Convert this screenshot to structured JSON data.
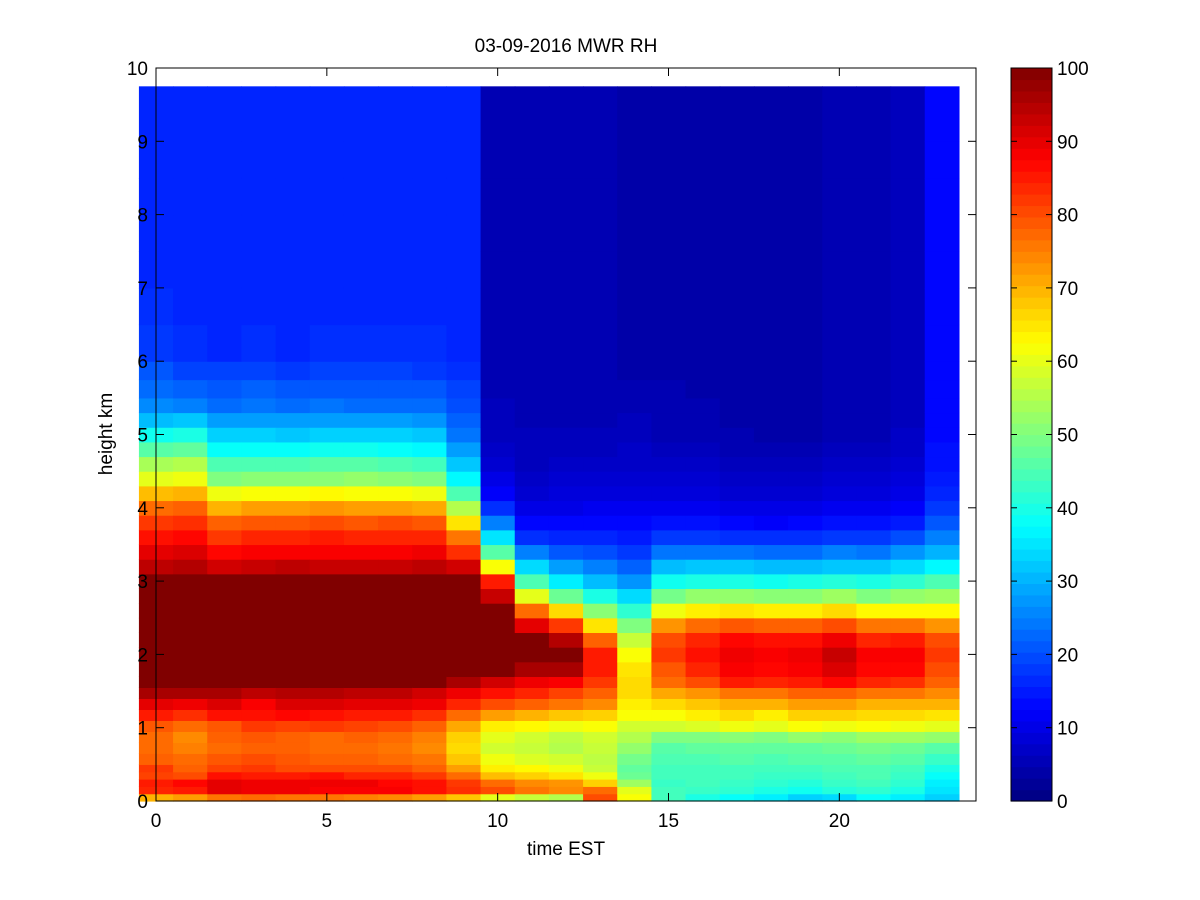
{
  "chart_data": {
    "type": "heatmap",
    "title": "03-09-2016 MWR RH",
    "xlabel": "time EST",
    "ylabel": "height km",
    "xlim": [
      0,
      24
    ],
    "ylim": [
      0,
      10
    ],
    "xticks": [
      0,
      5,
      10,
      15,
      20
    ],
    "yticks": [
      0,
      1,
      2,
      3,
      4,
      5,
      6,
      7,
      8,
      9,
      10
    ],
    "colorbar": {
      "min": 0,
      "max": 100,
      "ticks": [
        0,
        10,
        20,
        30,
        40,
        50,
        60,
        70,
        80,
        90,
        100
      ],
      "colormap": "jet"
    },
    "x": [
      0,
      1,
      2,
      3,
      4,
      5,
      6,
      7,
      8,
      9,
      10,
      11,
      12,
      13,
      14,
      15,
      16,
      17,
      18,
      19,
      20,
      21,
      22,
      23
    ],
    "y_edges": [
      0,
      0.1,
      0.2,
      0.3,
      0.4,
      0.5,
      0.65,
      0.8,
      0.95,
      1.1,
      1.25,
      1.4,
      1.55,
      1.7,
      1.9,
      2.1,
      2.3,
      2.5,
      2.7,
      2.9,
      3.1,
      3.3,
      3.5,
      3.7,
      3.9,
      4.1,
      4.3,
      4.5,
      4.7,
      4.9,
      5.1,
      5.3,
      5.5,
      5.75,
      6.0,
      6.5,
      7.0,
      7.5,
      8.0,
      8.5,
      9.0,
      9.75
    ],
    "profiles": {
      "morning": [
        [
          0,
          75
        ],
        [
          0.3,
          88
        ],
        [
          0.7,
          77
        ],
        [
          1.2,
          80
        ],
        [
          1.5,
          92
        ],
        [
          1.7,
          100
        ],
        [
          3.0,
          100
        ],
        [
          3.4,
          90
        ],
        [
          3.8,
          80
        ],
        [
          4.1,
          65
        ],
        [
          4.4,
          48
        ],
        [
          4.7,
          35
        ],
        [
          5.2,
          24
        ],
        [
          6.0,
          18
        ],
        [
          9.75,
          16
        ]
      ],
      "afternoon": [
        [
          0,
          72
        ],
        [
          0.2,
          43
        ],
        [
          0.5,
          45
        ],
        [
          1.0,
          50
        ],
        [
          1.3,
          64
        ],
        [
          1.7,
          86
        ],
        [
          2.1,
          88
        ],
        [
          2.3,
          76
        ],
        [
          2.6,
          55
        ],
        [
          3.0,
          38
        ],
        [
          3.4,
          22
        ],
        [
          3.8,
          12
        ],
        [
          4.5,
          6
        ],
        [
          6.0,
          4
        ],
        [
          9.75,
          5
        ]
      ]
    },
    "values": [
      [
        70,
        84,
        85,
        81,
        82,
        78,
        77,
        77,
        79,
        85,
        90,
        96,
        100,
        100,
        100,
        100,
        100,
        100,
        100,
        100,
        94,
        90,
        86,
        82,
        77,
        69,
        60,
        54,
        46,
        39,
        31,
        26,
        23,
        21,
        18,
        17,
        16,
        16,
        16,
        16,
        16
      ],
      [
        72,
        85,
        87,
        80,
        78,
        77,
        75,
        74,
        77,
        83,
        89,
        96,
        100,
        100,
        100,
        100,
        100,
        100,
        100,
        100,
        95,
        91,
        87,
        83,
        78,
        70,
        61,
        55,
        47,
        40,
        32,
        25,
        22,
        19,
        17,
        16,
        16,
        16,
        16,
        16,
        16
      ],
      [
        76,
        90,
        90,
        86,
        81,
        79,
        77,
        78,
        79,
        86,
        91,
        96,
        100,
        100,
        100,
        100,
        100,
        100,
        100,
        100,
        92,
        87,
        82,
        78,
        70,
        61,
        50,
        45,
        38,
        33,
        28,
        23,
        21,
        19,
        16,
        16,
        16,
        16,
        16,
        16,
        16
      ],
      [
        77,
        89,
        89,
        85,
        82,
        80,
        78,
        79,
        82,
        86,
        88,
        94,
        100,
        100,
        100,
        100,
        100,
        100,
        100,
        100,
        93,
        88,
        84,
        79,
        72,
        62,
        51,
        45,
        38,
        33,
        28,
        24,
        22,
        19,
        17,
        16,
        16,
        16,
        16,
        16,
        16
      ],
      [
        76,
        89,
        89,
        85,
        80,
        79,
        78,
        78,
        81,
        87,
        91,
        95,
        100,
        100,
        100,
        100,
        100,
        100,
        100,
        100,
        94,
        88,
        84,
        79,
        72,
        62,
        51,
        45,
        38,
        32,
        28,
        23,
        21,
        18,
        16,
        16,
        16,
        16,
        16,
        16,
        16
      ],
      [
        76,
        88,
        89,
        86,
        80,
        78,
        77,
        77,
        82,
        86,
        91,
        95,
        100,
        100,
        100,
        100,
        100,
        100,
        100,
        100,
        93,
        88,
        85,
        80,
        73,
        63,
        51,
        46,
        39,
        33,
        28,
        24,
        21,
        19,
        17,
        16,
        16,
        16,
        16,
        16,
        16
      ],
      [
        75,
        88,
        89,
        84,
        80,
        78,
        77,
        78,
        81,
        85,
        90,
        94,
        100,
        100,
        100,
        100,
        100,
        100,
        100,
        100,
        93,
        88,
        84,
        79,
        72,
        62,
        52,
        46,
        39,
        33,
        28,
        23,
        21,
        19,
        17,
        16,
        16,
        16,
        16,
        16,
        16
      ],
      [
        74,
        88,
        87,
        84,
        80,
        77,
        76,
        77,
        80,
        85,
        90,
        94,
        100,
        100,
        100,
        100,
        100,
        100,
        100,
        100,
        93,
        88,
        84,
        80,
        72,
        62,
        51,
        45,
        38,
        33,
        28,
        23,
        21,
        19,
        17,
        16,
        16,
        16,
        16,
        16,
        16
      ],
      [
        72,
        86,
        86,
        82,
        78,
        76,
        74,
        75,
        78,
        83,
        89,
        92,
        100,
        100,
        100,
        100,
        100,
        100,
        100,
        100,
        94,
        89,
        84,
        79,
        71,
        61,
        50,
        44,
        37,
        32,
        27,
        23,
        21,
        18,
        17,
        16,
        16,
        16,
        16,
        16,
        16
      ],
      [
        68,
        83,
        82,
        77,
        72,
        68,
        66,
        67,
        71,
        77,
        84,
        89,
        96,
        100,
        100,
        100,
        100,
        100,
        100,
        100,
        92,
        83,
        76,
        65,
        55,
        45,
        37,
        32,
        28,
        24,
        22,
        20,
        19,
        17,
        16,
        16,
        16,
        16,
        16,
        16,
        16
      ],
      [
        60,
        80,
        77,
        69,
        64,
        61,
        58,
        60,
        64,
        72,
        80,
        86,
        92,
        100,
        100,
        100,
        100,
        100,
        93,
        85,
        62,
        46,
        35,
        25,
        17,
        12,
        10,
        8,
        7,
        6,
        6,
        6,
        5,
        5,
        5,
        5,
        5,
        5,
        5,
        5,
        5
      ],
      [
        57,
        76,
        74,
        67,
        63,
        59,
        57,
        58,
        63,
        70,
        78,
        84,
        89,
        96,
        100,
        100,
        90,
        77,
        60,
        45,
        34,
        25,
        17,
        13,
        10,
        8,
        7,
        6,
        6,
        6,
        5,
        5,
        5,
        5,
        5,
        5,
        5,
        5,
        5,
        5,
        5
      ],
      [
        55,
        74,
        73,
        65,
        61,
        58,
        55,
        56,
        61,
        68,
        76,
        81,
        88,
        96,
        100,
        95,
        82,
        66,
        48,
        36,
        28,
        21,
        16,
        13,
        10,
        9,
        8,
        7,
        6,
        6,
        5,
        5,
        5,
        5,
        5,
        5,
        5,
        5,
        5,
        5,
        5
      ],
      [
        80,
        77,
        67,
        61,
        57,
        56,
        57,
        58,
        62,
        67,
        74,
        78,
        82,
        85,
        85,
        78,
        65,
        51,
        40,
        31,
        25,
        20,
        16,
        13,
        11,
        9,
        8,
        7,
        6,
        6,
        5,
        5,
        5,
        5,
        5,
        5,
        5,
        5,
        5,
        5,
        5
      ],
      [
        62,
        60,
        53,
        48,
        47,
        49,
        52,
        55,
        58,
        62,
        64,
        66,
        66,
        65,
        62,
        57,
        50,
        42,
        34,
        27,
        22,
        18,
        15,
        13,
        11,
        9,
        8,
        7,
        7,
        6,
        6,
        5,
        5,
        4,
        4,
        4,
        4,
        4,
        4,
        4,
        4
      ],
      [
        44,
        44,
        43,
        44,
        44,
        45,
        46,
        50,
        58,
        62,
        66,
        71,
        77,
        79,
        82,
        80,
        73,
        61,
        49,
        39,
        31,
        24,
        18,
        14,
        11,
        9,
        8,
        7,
        6,
        5,
        5,
        5,
        5,
        4,
        4,
        4,
        4,
        4,
        4,
        4,
        4
      ],
      [
        40,
        43,
        44,
        44,
        44,
        45,
        47,
        50,
        59,
        64,
        68,
        73,
        80,
        84,
        86,
        84,
        77,
        64,
        52,
        40,
        32,
        24,
        18,
        14,
        11,
        9,
        8,
        7,
        6,
        5,
        5,
        5,
        4,
        4,
        4,
        4,
        4,
        4,
        4,
        4,
        4
      ],
      [
        38,
        42,
        43,
        44,
        44,
        46,
        47,
        51,
        61,
        66,
        70,
        76,
        85,
        88,
        89,
        87,
        79,
        65,
        52,
        40,
        32,
        24,
        17,
        13,
        10,
        8,
        7,
        6,
        5,
        5,
        4,
        4,
        4,
        4,
        4,
        4,
        4,
        4,
        4,
        4,
        4
      ],
      [
        36,
        40,
        42,
        43,
        44,
        45,
        47,
        50,
        60,
        64,
        70,
        76,
        84,
        87,
        88,
        86,
        78,
        64,
        51,
        39,
        31,
        23,
        17,
        12,
        10,
        8,
        7,
        6,
        5,
        4,
        4,
        4,
        4,
        4,
        4,
        4,
        4,
        4,
        4,
        4,
        4
      ],
      [
        33,
        39,
        41,
        43,
        44,
        46,
        47,
        52,
        62,
        67,
        72,
        78,
        85,
        88,
        89,
        86,
        78,
        64,
        51,
        40,
        31,
        23,
        17,
        13,
        10,
        8,
        7,
        6,
        5,
        4,
        4,
        4,
        4,
        4,
        4,
        4,
        4,
        4,
        4,
        4,
        4
      ],
      [
        34,
        41,
        43,
        44,
        45,
        46,
        48,
        51,
        61,
        67,
        72,
        78,
        87,
        91,
        93,
        89,
        80,
        66,
        53,
        41,
        32,
        25,
        18,
        14,
        11,
        9,
        8,
        7,
        6,
        5,
        5,
        5,
        5,
        5,
        5,
        5,
        5,
        5,
        5,
        5,
        5
      ],
      [
        38,
        42,
        44,
        45,
        45,
        47,
        49,
        53,
        62,
        66,
        70,
        76,
        84,
        87,
        88,
        84,
        76,
        63,
        50,
        40,
        32,
        24,
        18,
        14,
        11,
        9,
        8,
        7,
        6,
        5,
        5,
        5,
        5,
        5,
        5,
        5,
        5,
        5,
        5,
        5,
        5
      ],
      [
        36,
        40,
        42,
        43,
        44,
        46,
        48,
        53,
        61,
        66,
        70,
        76,
        83,
        87,
        88,
        85,
        76,
        63,
        52,
        42,
        34,
        27,
        20,
        15,
        12,
        10,
        9,
        8,
        7,
        7,
        6,
        6,
        6,
        6,
        6,
        6,
        6,
        6,
        6,
        6,
        6
      ],
      [
        33,
        35,
        36,
        38,
        40,
        43,
        46,
        52,
        60,
        65,
        70,
        74,
        78,
        80,
        82,
        80,
        73,
        63,
        53,
        45,
        37,
        30,
        25,
        21,
        18,
        16,
        15,
        14,
        14,
        13,
        13,
        13,
        13,
        13,
        13,
        13,
        13,
        13,
        13,
        13,
        13
      ]
    ]
  }
}
